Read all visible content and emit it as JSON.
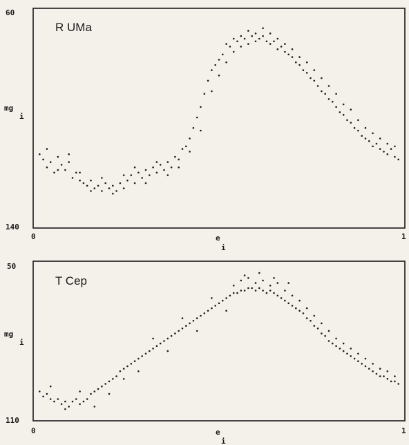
{
  "chart_data": [
    {
      "type": "scatter",
      "title": "R UMa",
      "ylabel_main": "mg",
      "ylabel_sub": "i",
      "xlabel_main": "e",
      "xlabel_sub": "i",
      "ylim_labels": [
        "60",
        "140"
      ],
      "xlim_labels": [
        "0",
        "1"
      ],
      "ylim": [
        140,
        60
      ],
      "xlim": [
        0,
        1
      ],
      "inverted_y": true,
      "grid": false,
      "color": "#1f1f1f",
      "points": [
        [
          0.01,
          114
        ],
        [
          0.02,
          116
        ],
        [
          0.03,
          119
        ],
        [
          0.04,
          117
        ],
        [
          0.05,
          121
        ],
        [
          0.06,
          115
        ],
        [
          0.07,
          118
        ],
        [
          0.08,
          120
        ],
        [
          0.09,
          117
        ],
        [
          0.1,
          123
        ],
        [
          0.11,
          121
        ],
        [
          0.12,
          124
        ],
        [
          0.13,
          125
        ],
        [
          0.14,
          126
        ],
        [
          0.15,
          124
        ],
        [
          0.16,
          127
        ],
        [
          0.17,
          126
        ],
        [
          0.18,
          128
        ],
        [
          0.19,
          125
        ],
        [
          0.2,
          127
        ],
        [
          0.21,
          126
        ],
        [
          0.22,
          128
        ],
        [
          0.23,
          125
        ],
        [
          0.24,
          122
        ],
        [
          0.25,
          124
        ],
        [
          0.26,
          122
        ],
        [
          0.27,
          125
        ],
        [
          0.28,
          121
        ],
        [
          0.29,
          123
        ],
        [
          0.3,
          120
        ],
        [
          0.31,
          122
        ],
        [
          0.32,
          119
        ],
        [
          0.33,
          121
        ],
        [
          0.34,
          118
        ],
        [
          0.35,
          120
        ],
        [
          0.36,
          117
        ],
        [
          0.37,
          119
        ],
        [
          0.38,
          115
        ],
        [
          0.39,
          116
        ],
        [
          0.4,
          112
        ],
        [
          0.41,
          111
        ],
        [
          0.42,
          108
        ],
        [
          0.43,
          104
        ],
        [
          0.44,
          100
        ],
        [
          0.45,
          96
        ],
        [
          0.46,
          91
        ],
        [
          0.47,
          86
        ],
        [
          0.48,
          82
        ],
        [
          0.49,
          80
        ],
        [
          0.5,
          78
        ],
        [
          0.51,
          76
        ],
        [
          0.52,
          72
        ],
        [
          0.53,
          73
        ],
        [
          0.54,
          70
        ],
        [
          0.55,
          71
        ],
        [
          0.56,
          69
        ],
        [
          0.57,
          70
        ],
        [
          0.58,
          67
        ],
        [
          0.59,
          69
        ],
        [
          0.6,
          68
        ],
        [
          0.61,
          70
        ],
        [
          0.62,
          69
        ],
        [
          0.63,
          71
        ],
        [
          0.64,
          72
        ],
        [
          0.65,
          71
        ],
        [
          0.66,
          74
        ],
        [
          0.67,
          73
        ],
        [
          0.68,
          75
        ],
        [
          0.69,
          76
        ],
        [
          0.7,
          77
        ],
        [
          0.71,
          79
        ],
        [
          0.72,
          80
        ],
        [
          0.73,
          82
        ],
        [
          0.74,
          83
        ],
        [
          0.75,
          85
        ],
        [
          0.76,
          86
        ],
        [
          0.77,
          88
        ],
        [
          0.78,
          90
        ],
        [
          0.79,
          91
        ],
        [
          0.8,
          93
        ],
        [
          0.81,
          94
        ],
        [
          0.82,
          96
        ],
        [
          0.83,
          98
        ],
        [
          0.84,
          99
        ],
        [
          0.85,
          101
        ],
        [
          0.86,
          102
        ],
        [
          0.87,
          104
        ],
        [
          0.88,
          105
        ],
        [
          0.89,
          107
        ],
        [
          0.9,
          108
        ],
        [
          0.91,
          109
        ],
        [
          0.92,
          111
        ],
        [
          0.93,
          110
        ],
        [
          0.94,
          112
        ],
        [
          0.95,
          113
        ],
        [
          0.96,
          114
        ],
        [
          0.97,
          112
        ],
        [
          0.98,
          115
        ],
        [
          0.99,
          116
        ],
        [
          0.03,
          112
        ],
        [
          0.06,
          120
        ],
        [
          0.09,
          114
        ],
        [
          0.12,
          121
        ],
        [
          0.15,
          128
        ],
        [
          0.18,
          123
        ],
        [
          0.21,
          129
        ],
        [
          0.24,
          127
        ],
        [
          0.27,
          119
        ],
        [
          0.3,
          125
        ],
        [
          0.33,
          117
        ],
        [
          0.36,
          122
        ],
        [
          0.39,
          119
        ],
        [
          0.42,
          113
        ],
        [
          0.45,
          105
        ],
        [
          0.48,
          90
        ],
        [
          0.5,
          84
        ],
        [
          0.52,
          79
        ],
        [
          0.54,
          75
        ],
        [
          0.56,
          73
        ],
        [
          0.58,
          72
        ],
        [
          0.6,
          71
        ],
        [
          0.62,
          66
        ],
        [
          0.64,
          68
        ],
        [
          0.66,
          70
        ],
        [
          0.68,
          72
        ],
        [
          0.7,
          74
        ],
        [
          0.72,
          77
        ],
        [
          0.74,
          79
        ],
        [
          0.76,
          82
        ],
        [
          0.78,
          85
        ],
        [
          0.8,
          88
        ],
        [
          0.82,
          91
        ],
        [
          0.84,
          95
        ],
        [
          0.86,
          97
        ],
        [
          0.88,
          101
        ],
        [
          0.9,
          104
        ],
        [
          0.92,
          106
        ],
        [
          0.94,
          108
        ],
        [
          0.96,
          110
        ],
        [
          0.98,
          111
        ]
      ]
    },
    {
      "type": "scatter",
      "title": "T Cep",
      "ylabel_main": "mg",
      "ylabel_sub": "i",
      "xlabel_main": "e",
      "xlabel_sub": "i",
      "ylim_labels": [
        "50",
        "110"
      ],
      "xlim_labels": [
        "0",
        "1"
      ],
      "ylim": [
        110,
        50
      ],
      "xlim": [
        0,
        1
      ],
      "inverted_y": true,
      "grid": false,
      "color": "#1f1f1f",
      "points": [
        [
          0.01,
          100
        ],
        [
          0.02,
          102
        ],
        [
          0.03,
          101
        ],
        [
          0.04,
          103
        ],
        [
          0.05,
          104
        ],
        [
          0.06,
          103
        ],
        [
          0.07,
          105
        ],
        [
          0.08,
          104
        ],
        [
          0.09,
          106
        ],
        [
          0.1,
          104
        ],
        [
          0.11,
          103
        ],
        [
          0.12,
          105
        ],
        [
          0.13,
          104
        ],
        [
          0.14,
          103
        ],
        [
          0.15,
          101
        ],
        [
          0.16,
          100
        ],
        [
          0.17,
          99
        ],
        [
          0.18,
          98
        ],
        [
          0.19,
          97
        ],
        [
          0.2,
          96
        ],
        [
          0.21,
          95
        ],
        [
          0.22,
          94
        ],
        [
          0.23,
          92
        ],
        [
          0.24,
          91
        ],
        [
          0.25,
          90
        ],
        [
          0.26,
          89
        ],
        [
          0.27,
          88
        ],
        [
          0.28,
          87
        ],
        [
          0.29,
          86
        ],
        [
          0.3,
          85
        ],
        [
          0.31,
          84
        ],
        [
          0.32,
          83
        ],
        [
          0.33,
          82
        ],
        [
          0.34,
          81
        ],
        [
          0.35,
          80
        ],
        [
          0.36,
          79
        ],
        [
          0.37,
          78
        ],
        [
          0.38,
          77
        ],
        [
          0.39,
          76
        ],
        [
          0.4,
          75
        ],
        [
          0.41,
          74
        ],
        [
          0.42,
          73
        ],
        [
          0.43,
          72
        ],
        [
          0.44,
          71
        ],
        [
          0.45,
          70
        ],
        [
          0.46,
          69
        ],
        [
          0.47,
          68
        ],
        [
          0.48,
          67
        ],
        [
          0.49,
          66
        ],
        [
          0.5,
          65
        ],
        [
          0.51,
          64
        ],
        [
          0.52,
          63
        ],
        [
          0.53,
          62
        ],
        [
          0.54,
          61
        ],
        [
          0.55,
          61
        ],
        [
          0.56,
          60
        ],
        [
          0.57,
          60
        ],
        [
          0.58,
          59
        ],
        [
          0.59,
          59
        ],
        [
          0.6,
          60
        ],
        [
          0.61,
          59
        ],
        [
          0.62,
          60
        ],
        [
          0.63,
          61
        ],
        [
          0.64,
          60
        ],
        [
          0.65,
          61
        ],
        [
          0.66,
          62
        ],
        [
          0.67,
          63
        ],
        [
          0.68,
          64
        ],
        [
          0.69,
          65
        ],
        [
          0.7,
          66
        ],
        [
          0.71,
          67
        ],
        [
          0.72,
          68
        ],
        [
          0.73,
          69
        ],
        [
          0.74,
          71
        ],
        [
          0.75,
          72
        ],
        [
          0.76,
          74
        ],
        [
          0.77,
          75
        ],
        [
          0.78,
          77
        ],
        [
          0.79,
          78
        ],
        [
          0.8,
          80
        ],
        [
          0.81,
          81
        ],
        [
          0.82,
          82
        ],
        [
          0.83,
          83
        ],
        [
          0.84,
          84
        ],
        [
          0.85,
          85
        ],
        [
          0.86,
          86
        ],
        [
          0.87,
          87
        ],
        [
          0.88,
          88
        ],
        [
          0.89,
          89
        ],
        [
          0.9,
          90
        ],
        [
          0.91,
          91
        ],
        [
          0.92,
          92
        ],
        [
          0.93,
          93
        ],
        [
          0.94,
          94
        ],
        [
          0.95,
          94
        ],
        [
          0.96,
          95
        ],
        [
          0.97,
          96
        ],
        [
          0.98,
          96
        ],
        [
          0.99,
          97
        ],
        [
          0.04,
          98
        ],
        [
          0.08,
          107
        ],
        [
          0.12,
          100
        ],
        [
          0.16,
          106
        ],
        [
          0.2,
          101
        ],
        [
          0.24,
          95
        ],
        [
          0.28,
          92
        ],
        [
          0.32,
          79
        ],
        [
          0.36,
          84
        ],
        [
          0.4,
          71
        ],
        [
          0.44,
          76
        ],
        [
          0.48,
          63
        ],
        [
          0.52,
          68
        ],
        [
          0.56,
          56
        ],
        [
          0.58,
          55
        ],
        [
          0.6,
          57
        ],
        [
          0.62,
          56
        ],
        [
          0.64,
          58
        ],
        [
          0.66,
          57
        ],
        [
          0.68,
          60
        ],
        [
          0.7,
          62
        ],
        [
          0.72,
          64
        ],
        [
          0.74,
          67
        ],
        [
          0.76,
          70
        ],
        [
          0.78,
          73
        ],
        [
          0.8,
          76
        ],
        [
          0.82,
          79
        ],
        [
          0.84,
          81
        ],
        [
          0.86,
          83
        ],
        [
          0.88,
          85
        ],
        [
          0.9,
          87
        ],
        [
          0.92,
          89
        ],
        [
          0.94,
          91
        ],
        [
          0.96,
          92
        ],
        [
          0.98,
          94
        ],
        [
          0.54,
          58
        ],
        [
          0.57,
          54
        ],
        [
          0.61,
          53
        ],
        [
          0.65,
          55
        ],
        [
          0.69,
          57
        ]
      ]
    }
  ]
}
